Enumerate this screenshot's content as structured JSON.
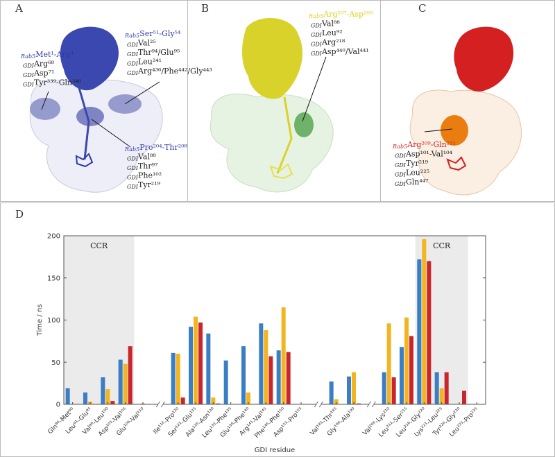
{
  "panels": [
    {
      "label": "A",
      "annotations": [
        {
          "color": "#2c3aa8",
          "title": {
            "prefix": "Rab5",
            "text": "Met¹-Arg⁴"
          },
          "lines": [
            {
              "prefix": "GDI",
              "text": "Arg⁶⁸"
            },
            {
              "prefix": "GDI",
              "text": "Asp⁷¹"
            },
            {
              "prefix": "GDI",
              "text": "Tyr³³⁹-Gln³⁴⁶"
            }
          ]
        },
        {
          "color": "#2c3aa8",
          "title": {
            "prefix": "Rab5",
            "text": "Ser⁵¹-Gly⁵⁴"
          },
          "lines": [
            {
              "prefix": "GDI",
              "text": "Val²⁵"
            },
            {
              "prefix": "GDI",
              "text": "Thr⁹⁴/Glu⁹⁵"
            },
            {
              "prefix": "GDI",
              "text": "Leu²⁴¹"
            },
            {
              "prefix": "GDI",
              "text": "Arg⁴³⁶/Phe⁴⁴²/Gly⁴⁴³"
            }
          ]
        },
        {
          "color": "#2c3aa8",
          "title": {
            "prefix": "Rab5",
            "text": "Pro²⁰⁴-Thr²⁰⁸"
          },
          "lines": [
            {
              "prefix": "GDI",
              "text": "Val⁸⁸"
            },
            {
              "prefix": "GDI",
              "text": "Thr⁹⁷"
            },
            {
              "prefix": "GDI",
              "text": "Phe¹⁰²"
            },
            {
              "prefix": "GDI",
              "text": "Tyr²¹⁹"
            }
          ]
        }
      ]
    },
    {
      "label": "B",
      "annotations": [
        {
          "color": "#e0cf1a",
          "title": {
            "prefix": "Rab5",
            "text": "Arg²⁰⁷-Asp²⁰⁸"
          },
          "lines": [
            {
              "prefix": "GDI",
              "text": "Val⁸⁸"
            },
            {
              "prefix": "GDI",
              "text": "Leu⁹²"
            },
            {
              "prefix": "GDI",
              "text": "Arg²¹⁸"
            },
            {
              "prefix": "GDI",
              "text": "Asp⁴⁴⁰/Val⁴⁴¹"
            }
          ]
        }
      ]
    },
    {
      "label": "C",
      "annotations": [
        {
          "color": "#d42020",
          "title": {
            "prefix": "Rab5",
            "text": "Arg²⁰⁹-Gln²¹¹"
          },
          "lines": [
            {
              "prefix": "GDI",
              "text": "Asp¹⁰¹-Val¹⁰⁴"
            },
            {
              "prefix": "GDI",
              "text": "Tyr²¹⁹"
            },
            {
              "prefix": "GDI",
              "text": "Leu²²⁵"
            },
            {
              "prefix": "GDI",
              "text": "Gln⁴⁴⁷"
            }
          ]
        }
      ]
    }
  ],
  "chart_data": {
    "type": "bar",
    "panel_label": "D",
    "xlabel": "GDI residue",
    "ylabel": "Time / ns",
    "categories": [
      "Gln⁸⁶-Met⁹⁰",
      "Leu⁹¹-Glu⁹⁵",
      "Val⁹⁶-Leu¹⁰⁰",
      "Asp¹⁰¹-Val¹⁰⁵",
      "Glu¹⁰⁶-Val¹¹⁰",
      null,
      "Ile¹¹⁶-Pro¹²⁰",
      "Ser¹²¹-Glu¹²⁵",
      "Ala¹²⁶-Asn¹³⁰",
      "Leu¹³¹-Phe¹³⁵",
      "Glu¹³⁶-Phe¹⁴⁰",
      "Arg¹⁴¹-Val¹⁴⁵",
      "Phe¹⁴⁶-Phe¹⁵⁰",
      "Asp¹⁵¹-Pro¹⁵⁵",
      null,
      "Val¹⁸¹-Thr¹⁸⁵",
      "Gly¹⁸⁶-Ala¹⁹⁰",
      null,
      "Val²⁰⁶-Lys²¹⁰",
      "Leu²¹¹-Ser²¹⁵",
      "Leu²¹⁶-Gly²²⁰",
      "Lys²²¹-Leu²²⁵",
      "Tyr²²⁶-Gly²³⁰",
      "Leu²³¹-Pro²³⁵"
    ],
    "series": [
      {
        "color": "#3b7ec4",
        "values": [
          19,
          14,
          32,
          53,
          0,
          null,
          61,
          92,
          84,
          52,
          69,
          96,
          64,
          0,
          null,
          27,
          33,
          null,
          38,
          68,
          172,
          38,
          0,
          0
        ]
      },
      {
        "color": "#f2b420",
        "values": [
          0,
          3,
          18,
          48,
          1,
          null,
          60,
          104,
          8,
          0,
          14,
          88,
          115,
          0,
          null,
          6,
          38,
          null,
          96,
          103,
          196,
          19,
          0,
          0
        ]
      },
      {
        "color": "#c8262b",
        "values": [
          0,
          0,
          4,
          69,
          0,
          null,
          8,
          97,
          1,
          0,
          0,
          57,
          62,
          0,
          null,
          0,
          1,
          null,
          32,
          81,
          170,
          38,
          16,
          0
        ]
      }
    ],
    "regions": [
      {
        "label": "CCR",
        "from": "Gln⁸⁶-Met⁹⁰",
        "to": "Asp¹⁰¹-Val¹⁰⁵"
      },
      {
        "label": "CCR",
        "from": "Leu²¹⁶-Gly²²⁰",
        "to": "Tyr²²⁶-Gly²³⁰"
      }
    ],
    "ylim": [
      0,
      200
    ],
    "yticks": [
      0,
      50,
      100,
      150,
      200
    ]
  }
}
